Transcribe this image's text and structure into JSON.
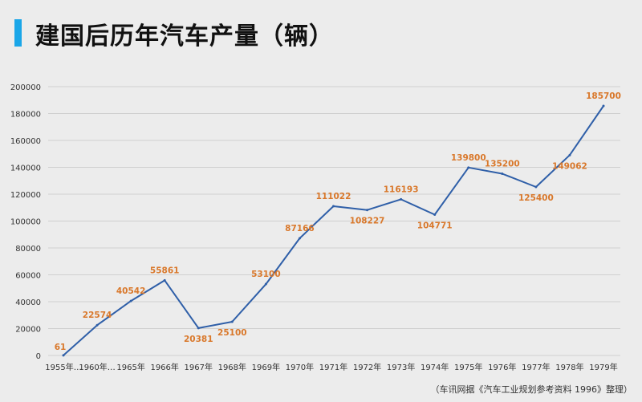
{
  "title": "建国后历年汽车产量（辆）",
  "source": "（车讯网据《汽车工业规划参考资料 1996》整理）",
  "chart_data": {
    "type": "line",
    "title": "建国后历年汽车产量（辆）",
    "categories": [
      "1955年…",
      "1960年…",
      "1965年",
      "1966年",
      "1967年",
      "1968年",
      "1969年",
      "1970年",
      "1971年",
      "1972年",
      "1973年",
      "1974年",
      "1975年",
      "1976年",
      "1977年",
      "1978年",
      "1979年"
    ],
    "values": [
      61,
      22574,
      40542,
      55861,
      20381,
      25100,
      53100,
      87166,
      111022,
      108227,
      116193,
      104771,
      139800,
      135200,
      125400,
      149062,
      185700
    ],
    "data_labels": [
      "61",
      "22574",
      "40542",
      "55861",
      "20381",
      "25100",
      "53100",
      "87166",
      "111022",
      "108227",
      "116193",
      "104771",
      "139800",
      "135200",
      "125400",
      "149062",
      "185700"
    ],
    "label_position": [
      "above",
      "above",
      "above",
      "above",
      "below",
      "below",
      "above",
      "above",
      "above",
      "below",
      "above",
      "below",
      "above",
      "above",
      "below",
      "below",
      "above"
    ],
    "ylim": [
      0,
      200000
    ],
    "yticks": [
      0,
      20000,
      40000,
      60000,
      80000,
      100000,
      120000,
      140000,
      160000,
      180000,
      200000
    ],
    "ytick_labels": [
      "0",
      "20000",
      "40000",
      "60000",
      "80000",
      "100000",
      "120000",
      "140000",
      "160000",
      "180000",
      "200000"
    ],
    "grid": true,
    "legend": "none",
    "colors": {
      "line": "#2f5fa8",
      "label": "#d9782b",
      "grid": "#cfcfcf",
      "axis_text": "#333333"
    }
  }
}
